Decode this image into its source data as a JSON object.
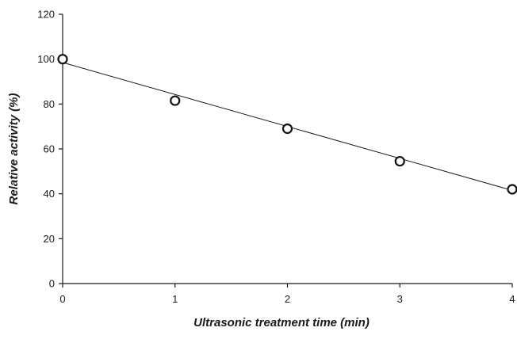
{
  "chart_data": {
    "type": "scatter",
    "title": "",
    "xlabel": "Ultrasonic treatment time (min)",
    "ylabel": "Relative activity (%)",
    "xlim": [
      0,
      4
    ],
    "ylim": [
      0,
      120
    ],
    "xticks": [
      0,
      1,
      2,
      3,
      4
    ],
    "yticks": [
      0,
      20,
      40,
      60,
      80,
      100,
      120
    ],
    "series": [
      {
        "x": [
          0,
          1,
          2,
          3,
          4
        ],
        "y": [
          100,
          81.5,
          69,
          54.5,
          42
        ],
        "marker": "open-circle",
        "color": "#111111"
      }
    ],
    "trendline": {
      "type": "linear",
      "x": [
        0,
        4
      ],
      "y": [
        98.5,
        41.5
      ],
      "color": "#1a1a1a"
    },
    "grid": false,
    "legend": "none"
  }
}
